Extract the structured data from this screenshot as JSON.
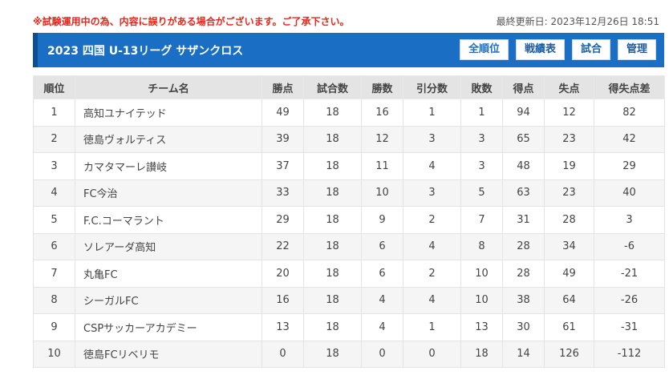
{
  "notice": "※試験運用中の為、内容に誤りがある場合がございます。ご了承下さい。",
  "updated": "最終更新日: 2023年12月26日 18:51",
  "league_title": "2023 四国 U-13リーグ サザンクロス",
  "nav": [
    "全順位",
    "戦績表",
    "試合",
    "管理"
  ],
  "columns": [
    "順位",
    "チーム名",
    "勝点",
    "試合数",
    "勝数",
    "引分数",
    "敗数",
    "得点",
    "失点",
    "得失点差"
  ],
  "rows": [
    [
      "1",
      "高知ユナイテッド",
      "49",
      "18",
      "16",
      "1",
      "1",
      "94",
      "12",
      "82"
    ],
    [
      "2",
      "徳島ヴォルティス",
      "39",
      "18",
      "12",
      "3",
      "3",
      "65",
      "23",
      "42"
    ],
    [
      "3",
      "カマタマーレ讃岐",
      "37",
      "18",
      "11",
      "4",
      "3",
      "48",
      "19",
      "29"
    ],
    [
      "4",
      "FC今治",
      "33",
      "18",
      "10",
      "3",
      "5",
      "63",
      "23",
      "40"
    ],
    [
      "5",
      "F.C.コーマラント",
      "29",
      "18",
      "9",
      "2",
      "7",
      "31",
      "28",
      "3"
    ],
    [
      "6",
      "ソレアーダ高知",
      "22",
      "18",
      "6",
      "4",
      "8",
      "28",
      "34",
      "-6"
    ],
    [
      "7",
      "丸亀FC",
      "20",
      "18",
      "6",
      "2",
      "10",
      "28",
      "49",
      "-21"
    ],
    [
      "8",
      "シーガルFC",
      "16",
      "18",
      "4",
      "4",
      "10",
      "38",
      "64",
      "-26"
    ],
    [
      "9",
      "CSPサッカーアカデミー",
      "13",
      "18",
      "4",
      "1",
      "13",
      "30",
      "61",
      "-31"
    ],
    [
      "10",
      "徳島FCリベリモ",
      "0",
      "18",
      "0",
      "0",
      "18",
      "14",
      "126",
      "-112"
    ]
  ]
}
